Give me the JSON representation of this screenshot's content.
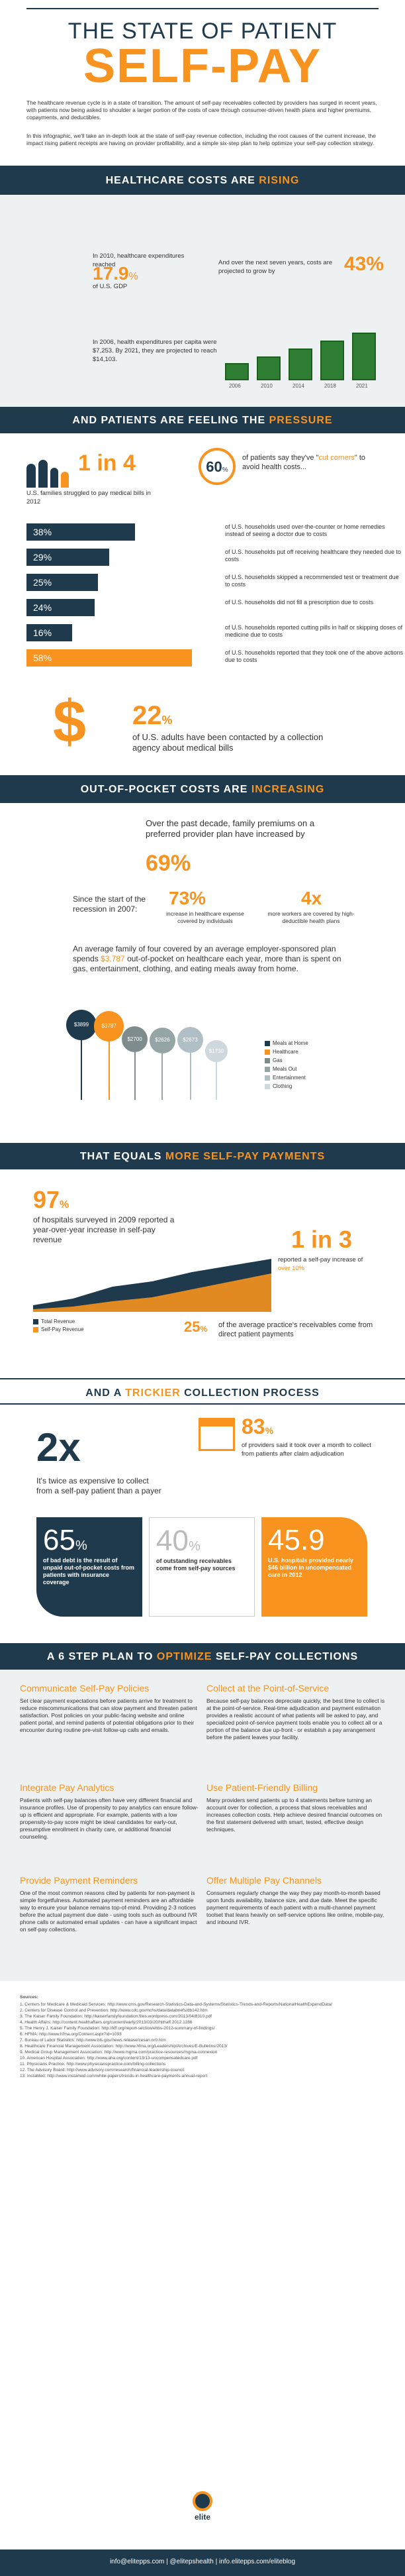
{
  "header": {
    "title_line1": "THE STATE OF PATIENT",
    "title_line2": "SELF-PAY",
    "intro1": "The healthcare revenue cycle is in a state of transition. The amount of self-pay receivables collected by providers has surged in recent years, with patients now being asked to shoulder a larger portion of the costs of care through consumer-driven health plans and higher premiums, copayments, and deductibles.",
    "intro2": "In this infographic, we'll take an in-depth look at the state of self-pay revenue collection, including the root causes of the current increase, the impact rising patient receipts are having on provider profitability, and a simple six-step plan to help optimize your self-pay collection strategy."
  },
  "s1": {
    "band_a": "HEALTHCARE COSTS ARE ",
    "band_b": "RISING",
    "stat1_a": "In 2010, healthcare expenditures reached",
    "stat1_num": "17.9",
    "stat1_unit": "%",
    "stat1_b": "of U.S. GDP",
    "stat2_a": "And over the next seven years, costs are projected to grow by",
    "stat2_num": "43%",
    "stat3": "In 2006, health expenditures per capita were $7,253. By 2021, they are projected to reach $14,103.",
    "years": [
      "2006",
      "2010",
      "2014",
      "2018",
      "2021"
    ]
  },
  "s2": {
    "band_a": "AND PATIENTS ARE FEELING THE ",
    "band_b": "PRESSURE",
    "one_in_4": "1 in 4",
    "one_in_4_txt": "U.S. families struggled to pay medical bills in 2012",
    "pct60": "60",
    "pct60_txt_a": "of patients say they've \"",
    "pct60_hl": "cut corners",
    "pct60_txt_b": "\" to avoid health costs...",
    "bars": [
      {
        "pct": "38%",
        "value": 38,
        "txt": "of U.S. households used over-the-counter or home remedies instead of seeing a doctor due to costs"
      },
      {
        "pct": "29%",
        "value": 29,
        "txt": "of U.S. households put off receiving healthcare they needed due to costs"
      },
      {
        "pct": "25%",
        "value": 25,
        "txt": "of U.S. households skipped a recommended test or treatment due to costs"
      },
      {
        "pct": "24%",
        "value": 24,
        "txt": "of U.S. households did not fill a prescription due to costs"
      },
      {
        "pct": "16%",
        "value": 16,
        "txt": "of U.S. households reported cutting pills in half or skipping doses of medicine due to costs"
      },
      {
        "pct": "58%",
        "value": 58,
        "txt": "of U.S. households reported that they took one of the above actions due to costs"
      }
    ],
    "pct22": "22",
    "pct22_txt": "of U.S. adults have been contacted by a collection agency about medical bills"
  },
  "s3": {
    "band_a": "OUT-OF-POCKET COSTS ARE ",
    "band_b": "INCREASING",
    "p1": "Over the past decade, family premiums on a preferred provider plan have increased by",
    "p1_num": "69%",
    "since": "Since the start of the recession in 2007:",
    "n73": "73%",
    "n73_txt": "increase in healthcare expense covered by individuals",
    "n4x": "4x",
    "n4x_txt": "more workers are covered by high-deductible health plans",
    "avg_a": "An average family of four covered by an average employer-sponsored plan spends ",
    "avg_hl": "$3,787",
    "avg_b": " out-of-pocket on healthcare each year, more than is spent on gas, entertainment, clothing, and eating meals away from home.",
    "bubbles": [
      "$3899",
      "$3787",
      "$2700",
      "$2626",
      "$2673",
      "$1730"
    ],
    "bubble_values": [
      3899,
      3787,
      2700,
      2626,
      2673,
      1730
    ],
    "legend": [
      "Meals at Home",
      "Healthcare",
      "Gas",
      "Meals Out",
      "Entertainment",
      "Clothing"
    ],
    "legend_colors": [
      "#1f3a4d",
      "#f7931e",
      "#7f8c8d",
      "#95a5a6",
      "#b0bec5",
      "#cfd8dc"
    ]
  },
  "s4": {
    "band_a": "THAT EQUALS ",
    "band_b": "MORE SELF-PAY PAYMENTS",
    "p97": "97",
    "p97_txt": "of hospitals surveyed in 2009 reported a year-over-year increase in self-pay revenue",
    "one_in_3": "1 in 3",
    "one_in_3_txt_a": "reported a self-pay increase of ",
    "one_in_3_hl": "over 10%",
    "legend1": "Total Revenue",
    "legend2": "Self-Pay Revenue",
    "p25": "25",
    "p25_txt": "of the average practice's receivables come from direct patient payments"
  },
  "s5": {
    "band_a": "AND A ",
    "band_b": "TRICKIER",
    "band_c": " COLLECTION PROCESS",
    "n2x": "2x",
    "n2x_txt": "It's twice as expensive to collect from a self-pay patient than a payer",
    "p83": "83",
    "p83_txt": "of providers said it took over a month to collect from patients after claim adjudication",
    "c65": "65",
    "c65_txt": "of bad debt is the result of unpaid out-of-pocket costs from patients with insurance coverage",
    "c40": "40",
    "c40_txt": "of outstanding receivables come from self-pay sources",
    "c45": "45.9",
    "c45_txt": "U.S. hospitals provided nearly $46 billion in uncompensated care in 2012"
  },
  "s6": {
    "band_a": "A 6 STEP PLAN TO ",
    "band_b": "OPTIMIZE",
    "band_c": " SELF-PAY COLLECTIONS",
    "steps": [
      {
        "title": "Communicate Self-Pay Policies",
        "text": "Set clear payment expectations before patients arrive for treatment to reduce miscommunications that can slow payment and threaten patient satisfaction. Post policies on your public-facing website and online patient portal, and remind patients of potential obligations prior to their encounter during routine pre-visit follow-up calls and emails."
      },
      {
        "title": "Collect at the Point-of-Service",
        "text": "Because self-pay balances depreciate quickly, the best time to collect is at the point-of-service. Real-time adjudication and payment estimation provides a realistic account of what patients will be asked to pay, and specialized point-of-service payment tools enable you to collect all or a portion of the balance due up-front - or establish a pay arrangement before the patient leaves your facility."
      },
      {
        "title": "Integrate Pay Analytics",
        "text": "Patients with self-pay balances often have very different financial and insurance profiles. Use of propensity to pay analytics can ensure follow-up is efficient and appropriate. For example, patients with a low propensity-to-pay score might be ideal candidates for early-out, presumptive enrollment in charity care, or additional financial counseling."
      },
      {
        "title": "Use Patient-Friendly Billing",
        "text": "Many providers send patients up to 4 statements before turning an account over for collection, a process that slows receivables and increases collection costs. Help achieve desired financial outcomes on the first statement delivered with smart, tested, effective design techniques."
      },
      {
        "title": "Provide Payment Reminders",
        "text": "One of the most common reasons cited by patients for non-payment is simple forgetfulness. Automated payment reminders are an affordable way to ensure your balance remains top-of-mind. Providing 2-3 notices before the actual payment due date - using tools such as outbound IVR phone calls or automated email updates - can have a significant impact on self-pay collections."
      },
      {
        "title": "Offer Multiple Pay Channels",
        "text": "Consumers regularly change the way they pay month-to-month based upon funds availability, balance size, and due date. Meet the specific payment requirements of each patient with a multi-channel payment toolset that leans heavily on self-service options like online, mobile-pay, and inbound IVR."
      }
    ]
  },
  "sources": {
    "title": "Sources:",
    "lines": [
      "1. Centers for Medicare & Medicaid Services: http://www.cms.gov/Research-Statistics-Data-and-Systems/Statistics-Trends-and-Reports/NationalHealthExpendData/",
      "2. Centers for Disease Control and Prevention: http://www.cdc.gov/nchs/data/databriefs/db142.htm",
      "3. The Kaiser Family Foundation: http://kaiserfamilyfoundation.files.wordpress.com/2013/04/8310.pdf",
      "4. Health Affairs: http://content.healthaffairs.org/content/early/2013/03/20/hlthaff.2012.1286",
      "5. The Henry J. Kaiser Family Foundation: http://kff.org/report-section/ehbs-2012-summary-of-findings/",
      "6. HFMA: http://www.hfma.org/Content.aspx?id=1093",
      "7. Bureau of Labor Statistics: http://www.bls.gov/news.release/cesan.nr0.htm",
      "8. Healthcare Financial Management Association: http://www.hfma.org/Leadership/Archives/E-Bulletins/2013/",
      "9. Medical Group Management Association: http://www.mgma.com/practice-resources/mgma-connexion",
      "10. American Hospital Association: http://www.aha.org/content/13/13-uncompensatedcare.pdf",
      "11. Physicians Practice: http://www.physicianspractice.com/billing-collections",
      "12. The Advisory Board: http://www.advisory.com/research/financial-leadership-council",
      "13. InstaMed: http://www.instamed.com/white-papers/trends-in-healthcare-payments-annual-report"
    ]
  },
  "footer": {
    "brand": "elite",
    "contact": "info@elitepps.com  |  @elitepshealth  |  info.elitepps.com/eliteblog"
  }
}
